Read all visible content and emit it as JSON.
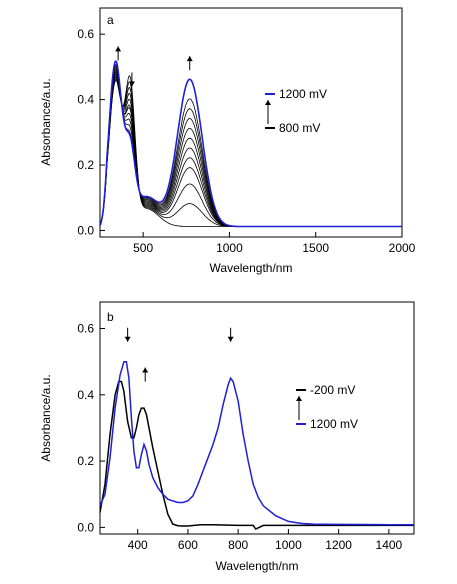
{
  "colors": {
    "blue": "#1f1fd6",
    "black": "#000000",
    "gray": "#222222"
  },
  "chart_data": [
    {
      "panel": "a",
      "type": "line",
      "xlabel": "Wavelength/nm",
      "ylabel": "Absorbance/a.u.",
      "xlim": [
        250,
        2000
      ],
      "ylim": [
        -0.02,
        0.68
      ],
      "xticks": [
        500,
        1000,
        1500,
        2000
      ],
      "yticks": [
        0.0,
        0.2,
        0.4,
        0.6
      ],
      "ytick_labels": [
        "0.0",
        "0.2",
        "0.4",
        "0.6"
      ],
      "legend": {
        "position": "right",
        "entries": [
          {
            "label": "1200 mV",
            "color": "blue"
          },
          {
            "label": "800 mV",
            "color": "black"
          }
        ]
      },
      "arrows": [
        {
          "x": 355,
          "y": 0.52,
          "direction": "up"
        },
        {
          "x": 435,
          "y": 0.44,
          "direction": "down"
        },
        {
          "x": 770,
          "y": 0.49,
          "direction": "up"
        }
      ],
      "family": {
        "base": 0.012,
        "peak_uv_1": 340,
        "peak_uv_2": 425,
        "peak_nir": 770,
        "uv1_heights": [
          0.44,
          0.445,
          0.45,
          0.455,
          0.46,
          0.465,
          0.47,
          0.475,
          0.48,
          0.485,
          0.49,
          0.5
        ],
        "uv2_heights": [
          0.4,
          0.38,
          0.36,
          0.34,
          0.32,
          0.3,
          0.29,
          0.27,
          0.25,
          0.23,
          0.21,
          0.2
        ],
        "nir_heights": [
          0.0,
          0.07,
          0.13,
          0.18,
          0.21,
          0.24,
          0.27,
          0.3,
          0.33,
          0.36,
          0.39,
          0.45
        ]
      }
    },
    {
      "panel": "b",
      "type": "line",
      "xlabel": "Wavelength/nm",
      "ylabel": "Absorbance/a.u.",
      "xlim": [
        250,
        1500
      ],
      "ylim": [
        -0.02,
        0.68
      ],
      "xticks": [
        400,
        600,
        800,
        1000,
        1200,
        1400
      ],
      "yticks": [
        0.0,
        0.2,
        0.4,
        0.6
      ],
      "ytick_labels": [
        "0.0",
        "0.2",
        "0.4",
        "0.6"
      ],
      "legend": {
        "position": "right",
        "entries": [
          {
            "label": "-200 mV",
            "color": "black"
          },
          {
            "label": "1200 mV",
            "color": "blue"
          }
        ]
      },
      "arrows": [
        {
          "x": 360,
          "y": 0.56,
          "direction": "down"
        },
        {
          "x": 430,
          "y": 0.44,
          "direction": "up"
        },
        {
          "x": 770,
          "y": 0.56,
          "direction": "down"
        }
      ],
      "series": [
        {
          "color": "black",
          "x": [
            250,
            270,
            290,
            310,
            325,
            335,
            345,
            360,
            375,
            385,
            395,
            405,
            415,
            425,
            435,
            445,
            460,
            480,
            500,
            520,
            540,
            560,
            580,
            600,
            650,
            700,
            800,
            860,
            870,
            900,
            1000,
            1200,
            1400,
            1500
          ],
          "y": [
            0.045,
            0.13,
            0.28,
            0.4,
            0.44,
            0.44,
            0.41,
            0.32,
            0.27,
            0.27,
            0.3,
            0.34,
            0.36,
            0.36,
            0.34,
            0.3,
            0.24,
            0.17,
            0.1,
            0.04,
            0.01,
            0.005,
            0.004,
            0.004,
            0.008,
            0.008,
            0.006,
            0.006,
            -0.005,
            0.006,
            0.006,
            0.006,
            0.006,
            0.006
          ]
        },
        {
          "color": "blue",
          "x": [
            250,
            270,
            290,
            310,
            330,
            345,
            355,
            365,
            375,
            385,
            395,
            405,
            415,
            425,
            435,
            445,
            460,
            480,
            500,
            520,
            540,
            560,
            580,
            600,
            620,
            640,
            660,
            680,
            700,
            720,
            740,
            760,
            770,
            780,
            800,
            820,
            840,
            860,
            880,
            900,
            950,
            1000,
            1050,
            1100,
            1200,
            1400,
            1500
          ],
          "y": [
            0.065,
            0.1,
            0.21,
            0.36,
            0.46,
            0.5,
            0.5,
            0.45,
            0.33,
            0.23,
            0.18,
            0.18,
            0.22,
            0.25,
            0.23,
            0.19,
            0.15,
            0.12,
            0.1,
            0.085,
            0.08,
            0.075,
            0.075,
            0.08,
            0.095,
            0.13,
            0.17,
            0.21,
            0.25,
            0.3,
            0.37,
            0.43,
            0.45,
            0.44,
            0.38,
            0.28,
            0.2,
            0.13,
            0.09,
            0.065,
            0.035,
            0.018,
            0.012,
            0.01,
            0.009,
            0.008,
            0.008
          ]
        }
      ]
    }
  ]
}
